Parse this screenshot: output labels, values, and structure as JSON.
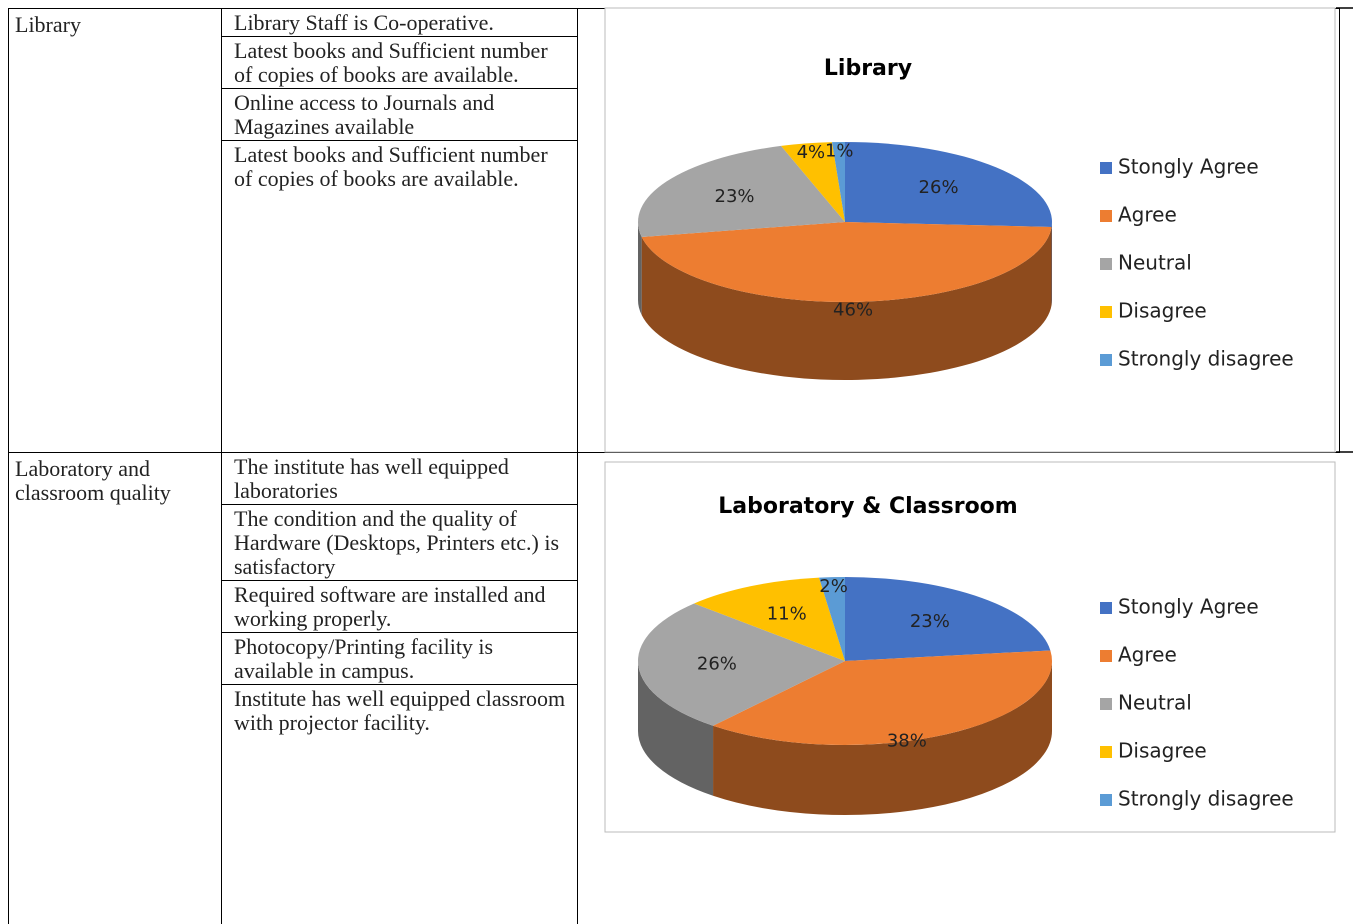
{
  "table": {
    "rows": [
      {
        "label": "Library",
        "statements": [
          "Library Staff is Co-operative.",
          "Latest books and Sufficient number of copies of books are available.",
          "Online access to Journals and Magazines available",
          "Latest books and Sufficient number of copies of books are available."
        ],
        "chart": {
          "type": "pie",
          "title": "Library",
          "categories": [
            "Stongly Agree",
            "Agree",
            "Neutral",
            "Disagree",
            "Strongly disagree"
          ],
          "values": [
            26,
            46,
            23,
            4,
            1
          ],
          "value_labels": [
            "26%",
            "46%",
            "23%",
            "4%",
            "1%"
          ],
          "colors": [
            "#4472c4",
            "#ed7d31",
            "#a5a5a5",
            "#ffc000",
            "#5b9bd5"
          ],
          "legend": "right"
        }
      },
      {
        "label": "Laboratory and classroom quality",
        "statements": [
          "The institute has well equipped laboratories",
          "The condition and the quality of Hardware (Desktops, Printers etc.) is satisfactory",
          "Required software are installed and working properly.",
          "Photocopy/Printing facility is available in campus.",
          "Institute has well equipped classroom with projector facility."
        ],
        "chart": {
          "type": "pie",
          "title": "Laboratory & Classroom",
          "categories": [
            "Stongly Agree",
            "Agree",
            "Neutral",
            "Disagree",
            "Strongly disagree"
          ],
          "values": [
            23,
            38,
            26,
            11,
            2
          ],
          "value_labels": [
            "23%",
            "38%",
            "26%",
            "11%",
            "2%"
          ],
          "colors": [
            "#4472c4",
            "#ed7d31",
            "#a5a5a5",
            "#ffc000",
            "#5b9bd5"
          ],
          "legend": "right"
        }
      }
    ]
  }
}
